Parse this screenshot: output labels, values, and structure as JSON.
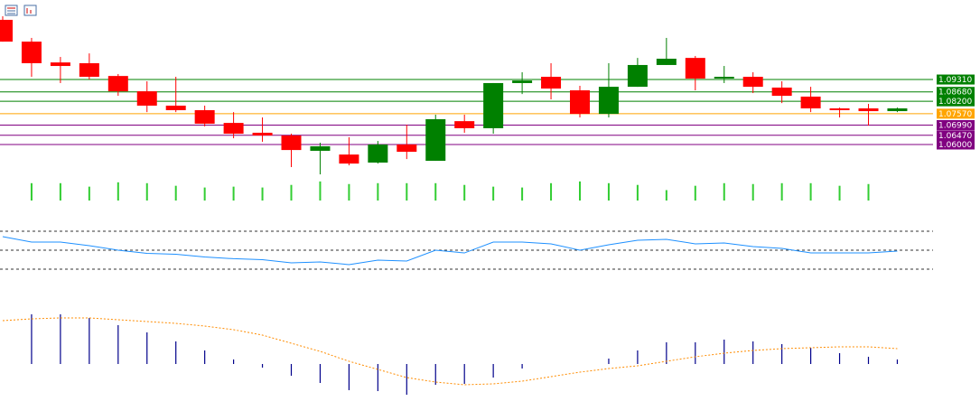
{
  "chart_data": [
    {
      "type": "candlestick",
      "up_color": "#008000",
      "down_color": "#ff0000",
      "ylim": [
        1.0439,
        1.1336
      ],
      "open": [
        1.1235,
        1.1124,
        1.1018,
        1.1014,
        1.0949,
        1.0871,
        1.0798,
        1.0775,
        1.071,
        1.066,
        1.0646,
        1.0568,
        1.0549,
        1.0508,
        1.06,
        1.0517,
        1.0719,
        1.0683,
        1.0913,
        1.0945,
        1.0876,
        1.0756,
        1.0894,
        1.1005,
        1.1041,
        1.0936,
        1.0945,
        1.089,
        1.0844,
        1.0784,
        1.0784,
        1.077
      ],
      "high": [
        1.1253,
        1.1143,
        1.1046,
        1.1064,
        1.0959,
        1.0922,
        1.0945,
        1.0798,
        1.0765,
        1.0738,
        1.0655,
        1.0609,
        1.0637,
        1.0618,
        1.0701,
        1.0752,
        1.0752,
        1.0913,
        1.0968,
        1.1014,
        1.0899,
        1.1014,
        1.1041,
        1.1143,
        1.1051,
        1.1,
        1.0968,
        1.0922,
        1.0894,
        1.0788,
        1.0807,
        1.0788
      ],
      "low": [
        1.1124,
        1.0945,
        1.0913,
        1.0931,
        1.0848,
        1.0765,
        1.0765,
        1.0692,
        1.0632,
        1.0614,
        1.0485,
        1.0448,
        1.0494,
        1.0503,
        1.0526,
        1.0517,
        1.066,
        1.0655,
        1.0857,
        1.083,
        1.0738,
        1.0738,
        1.0894,
        1.1005,
        1.0876,
        1.0913,
        1.0862,
        1.0811,
        1.0765,
        1.0738,
        1.0696,
        1.0765
      ],
      "close": [
        1.1124,
        1.1014,
        1.1,
        1.0945,
        1.0871,
        1.0798,
        1.0775,
        1.0706,
        1.0655,
        1.0646,
        1.0572,
        1.0591,
        1.0503,
        1.06,
        1.0563,
        1.0729,
        1.0683,
        1.0913,
        1.0926,
        1.0885,
        1.0756,
        1.0894,
        1.1005,
        1.1037,
        1.0936,
        1.0945,
        1.0894,
        1.0848,
        1.0784,
        1.0775,
        1.077,
        1.0784
      ],
      "levels": [
        {
          "value": 1.0931,
          "label": "1.09310",
          "color": "#008000"
        },
        {
          "value": 1.0868,
          "label": "1.08680",
          "color": "#008000"
        },
        {
          "value": 1.082,
          "label": "1.08200",
          "color": "#008000"
        },
        {
          "value": 1.0757,
          "label": "1.07570",
          "color": "#ffa500"
        },
        {
          "value": 1.0699,
          "label": "1.06990",
          "color": "#800080"
        },
        {
          "value": 1.0647,
          "label": "1.06470",
          "color": "#800080"
        },
        {
          "value": 1.06,
          "label": "1.06000",
          "color": "#800080"
        }
      ]
    },
    {
      "type": "bar",
      "color": "#32cd32",
      "ylim": [
        0,
        25
      ],
      "values": [
        null,
        20,
        20,
        16,
        21,
        20,
        17,
        15,
        16,
        15,
        18,
        22,
        19,
        20,
        20,
        20,
        18,
        16,
        15,
        20,
        22,
        20,
        18,
        12,
        17,
        20,
        19,
        20,
        20,
        17,
        19,
        null
      ]
    },
    {
      "type": "line",
      "color": "#1e90ff",
      "ylim": [
        23.3,
        80.5
      ],
      "levels": [
        70,
        50,
        30
      ],
      "values": [
        64.3,
        58.6,
        58.6,
        54.8,
        50,
        46.7,
        45.7,
        42.9,
        41,
        40,
        36.7,
        37.6,
        34.8,
        39.5,
        38.6,
        50,
        47.1,
        58.6,
        58.6,
        56.7,
        50,
        55.7,
        60.5,
        61.4,
        56.7,
        57.6,
        53.8,
        51.9,
        47.1,
        47.1,
        47.1,
        49
      ]
    },
    {
      "type": "histogram",
      "color": "#00008b",
      "ma_color": "#ff8c00",
      "ylim": [
        -42,
        73
      ],
      "values": [
        null,
        55,
        55,
        51,
        43,
        35,
        25,
        15,
        5,
        -4,
        -13,
        -21,
        -29,
        -30,
        -34,
        -23,
        -22,
        -15,
        -5,
        0,
        0,
        6,
        15,
        24,
        24,
        27,
        25,
        22,
        18,
        12,
        8,
        5
      ],
      "ma": [
        48,
        50,
        51,
        51,
        49,
        47,
        45,
        42,
        38,
        32,
        23,
        14,
        3,
        -6,
        -15,
        -20,
        -23,
        -22,
        -19,
        -14,
        -9,
        -5,
        -2,
        3,
        8,
        12,
        15,
        17,
        18,
        19,
        19,
        17
      ]
    }
  ]
}
